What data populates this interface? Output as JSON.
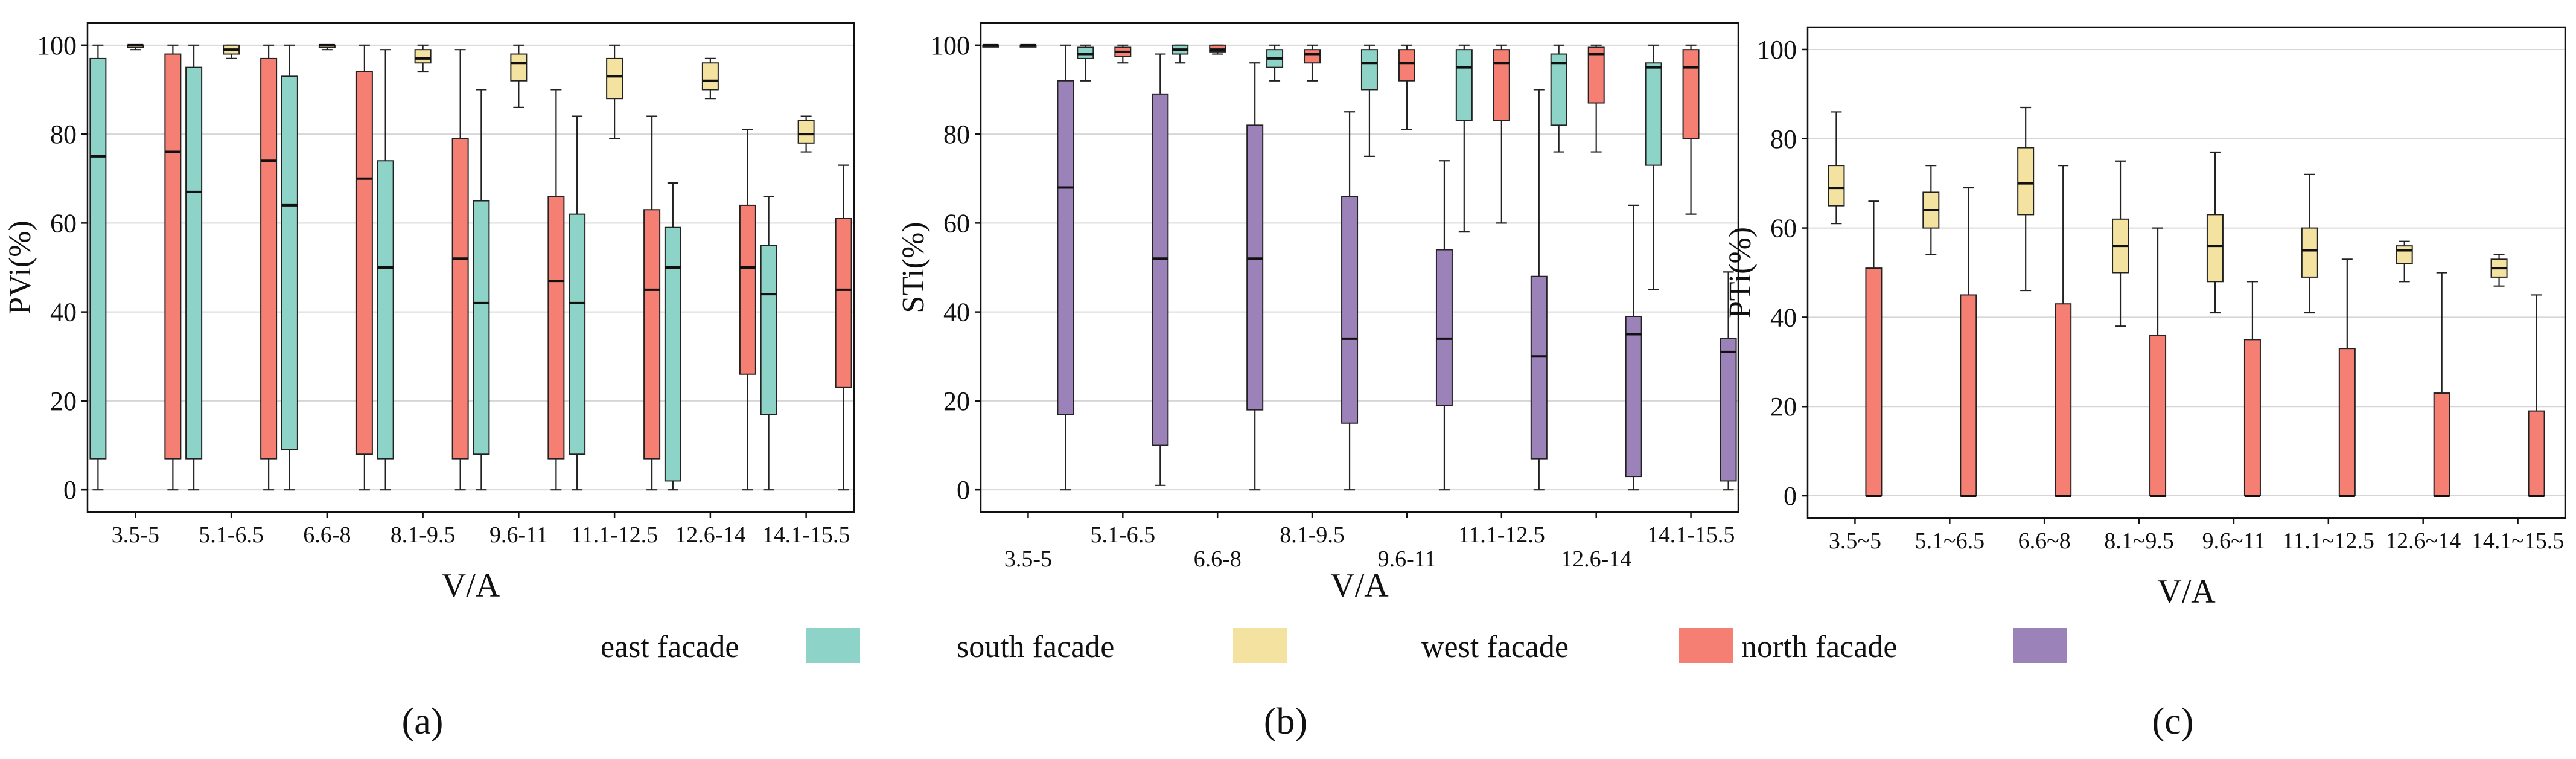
{
  "figure": {
    "colors": {
      "east": "#8dd3c7",
      "south": "#f4e2a0",
      "west": "#f47f72",
      "north": "#9b82b8",
      "grid": "#d6d6d6",
      "axis": "#111111"
    },
    "legend": [
      {
        "key": "east",
        "label": "east facade"
      },
      {
        "key": "south",
        "label": "south facade"
      },
      {
        "key": "west",
        "label": "west facade"
      },
      {
        "key": "north",
        "label": "north facade"
      }
    ]
  },
  "chart_data": [
    {
      "panel_label": "(a)",
      "type": "box",
      "title": "",
      "xlabel": "V/A",
      "ylabel": "PVi(%)",
      "ylim": [
        -5,
        105
      ],
      "yticks": [
        0,
        20,
        40,
        60,
        80,
        100
      ],
      "grid": true,
      "categories": [
        "3.5-5",
        "5.1-6.5",
        "6.6-8",
        "8.1-9.5",
        "9.6-11",
        "11.1-12.5",
        "12.6-14",
        "14.1-15.5"
      ],
      "series": [
        {
          "name": "east facade",
          "key": "east",
          "boxes": [
            {
              "whislo": 0,
              "q1": 7,
              "med": 75,
              "q3": 97,
              "whishi": 100
            },
            {
              "whislo": 0,
              "q1": 7,
              "med": 67,
              "q3": 95,
              "whishi": 100
            },
            {
              "whislo": 0,
              "q1": 9,
              "med": 64,
              "q3": 93,
              "whishi": 100
            },
            {
              "whislo": 0,
              "q1": 7,
              "med": 50,
              "q3": 74,
              "whishi": 99
            },
            {
              "whislo": 0,
              "q1": 8,
              "med": 42,
              "q3": 65,
              "whishi": 90
            },
            {
              "whislo": 0,
              "q1": 8,
              "med": 42,
              "q3": 62,
              "whishi": 84
            },
            {
              "whislo": 0,
              "q1": 2,
              "med": 50,
              "q3": 59,
              "whishi": 69
            },
            {
              "whislo": 0,
              "q1": 17,
              "med": 44,
              "q3": 55,
              "whishi": 66
            }
          ]
        },
        {
          "name": "south facade",
          "key": "south",
          "boxes": [
            {
              "whislo": 99,
              "q1": 99.5,
              "med": 100,
              "q3": 100,
              "whishi": 100
            },
            {
              "whislo": 97,
              "q1": 98,
              "med": 99,
              "q3": 100,
              "whishi": 100
            },
            {
              "whislo": 99,
              "q1": 99.5,
              "med": 100,
              "q3": 100,
              "whishi": 100
            },
            {
              "whislo": 94,
              "q1": 96,
              "med": 97,
              "q3": 99,
              "whishi": 100
            },
            {
              "whislo": 86,
              "q1": 92,
              "med": 96,
              "q3": 98,
              "whishi": 100
            },
            {
              "whislo": 79,
              "q1": 88,
              "med": 93,
              "q3": 97,
              "whishi": 100
            },
            {
              "whislo": 88,
              "q1": 90,
              "med": 92,
              "q3": 96,
              "whishi": 97
            },
            {
              "whislo": 76,
              "q1": 78,
              "med": 80,
              "q3": 83,
              "whishi": 84
            }
          ]
        },
        {
          "name": "west facade",
          "key": "west",
          "boxes": [
            {
              "whislo": 0,
              "q1": 7,
              "med": 76,
              "q3": 98,
              "whishi": 100
            },
            {
              "whislo": 0,
              "q1": 7,
              "med": 74,
              "q3": 97,
              "whishi": 100
            },
            {
              "whislo": 0,
              "q1": 8,
              "med": 70,
              "q3": 94,
              "whishi": 100
            },
            {
              "whislo": 0,
              "q1": 7,
              "med": 52,
              "q3": 79,
              "whishi": 99
            },
            {
              "whislo": 0,
              "q1": 7,
              "med": 47,
              "q3": 66,
              "whishi": 90
            },
            {
              "whislo": 0,
              "q1": 7,
              "med": 45,
              "q3": 63,
              "whishi": 84
            },
            {
              "whislo": 0,
              "q1": 26,
              "med": 50,
              "q3": 64,
              "whishi": 81
            },
            {
              "whislo": 0,
              "q1": 23,
              "med": 45,
              "q3": 61,
              "whishi": 73
            }
          ]
        }
      ]
    },
    {
      "panel_label": "(b)",
      "type": "box",
      "title": "",
      "xlabel": "V/A",
      "ylabel": "STi(%)",
      "ylim": [
        -5,
        105
      ],
      "yticks": [
        0,
        20,
        40,
        60,
        80,
        100
      ],
      "grid": true,
      "categories": [
        "3.5-5",
        "5.1-6.5",
        "6.6-8",
        "8.1-9.5",
        "9.6-11",
        "11.1-12.5",
        "12.6-14",
        "14.1-15.5"
      ],
      "series": [
        {
          "name": "east facade",
          "key": "east",
          "boxes": [
            {
              "whislo": 100,
              "q1": 100,
              "med": 100,
              "q3": 100,
              "whishi": 100
            },
            {
              "whislo": 92,
              "q1": 97,
              "med": 98,
              "q3": 99.5,
              "whishi": 100
            },
            {
              "whislo": 96,
              "q1": 98,
              "med": 99,
              "q3": 100,
              "whishi": 100
            },
            {
              "whislo": 92,
              "q1": 95,
              "med": 97,
              "q3": 99,
              "whishi": 100
            },
            {
              "whislo": 75,
              "q1": 90,
              "med": 96,
              "q3": 99,
              "whishi": 100
            },
            {
              "whislo": 58,
              "q1": 83,
              "med": 95,
              "q3": 99,
              "whishi": 100
            },
            {
              "whislo": 76,
              "q1": 82,
              "med": 96,
              "q3": 98,
              "whishi": 100
            },
            {
              "whislo": 45,
              "q1": 73,
              "med": 95,
              "q3": 96,
              "whishi": 100
            }
          ]
        },
        {
          "name": "west facade",
          "key": "west",
          "boxes": [
            {
              "whislo": 100,
              "q1": 100,
              "med": 100,
              "q3": 100,
              "whishi": 100
            },
            {
              "whislo": 96,
              "q1": 97.5,
              "med": 98.5,
              "q3": 99.5,
              "whishi": 100
            },
            {
              "whislo": 98,
              "q1": 98.5,
              "med": 99,
              "q3": 100,
              "whishi": 100
            },
            {
              "whislo": 92,
              "q1": 96,
              "med": 98,
              "q3": 99,
              "whishi": 100
            },
            {
              "whislo": 81,
              "q1": 92,
              "med": 96,
              "q3": 99,
              "whishi": 100
            },
            {
              "whislo": 60,
              "q1": 83,
              "med": 96,
              "q3": 99,
              "whishi": 100
            },
            {
              "whislo": 76,
              "q1": 87,
              "med": 98,
              "q3": 99.5,
              "whishi": 100
            },
            {
              "whislo": 62,
              "q1": 79,
              "med": 95,
              "q3": 99,
              "whishi": 100
            }
          ]
        },
        {
          "name": "north facade",
          "key": "north",
          "boxes": [
            {
              "whislo": 0,
              "q1": 17,
              "med": 68,
              "q3": 92,
              "whishi": 100
            },
            {
              "whislo": 1,
              "q1": 10,
              "med": 52,
              "q3": 89,
              "whishi": 98
            },
            {
              "whislo": 0,
              "q1": 18,
              "med": 52,
              "q3": 82,
              "whishi": 96
            },
            {
              "whislo": 0,
              "q1": 15,
              "med": 34,
              "q3": 66,
              "whishi": 85
            },
            {
              "whislo": 0,
              "q1": 19,
              "med": 34,
              "q3": 54,
              "whishi": 74
            },
            {
              "whislo": 0,
              "q1": 7,
              "med": 30,
              "q3": 48,
              "whishi": 90
            },
            {
              "whislo": 0,
              "q1": 3,
              "med": 35,
              "q3": 39,
              "whishi": 64
            },
            {
              "whislo": 0,
              "q1": 2,
              "med": 31,
              "q3": 34,
              "whishi": 49
            }
          ]
        }
      ]
    },
    {
      "panel_label": "(c)",
      "type": "box",
      "title": "",
      "xlabel": "V/A",
      "ylabel": "PTi(%)",
      "ylim": [
        -5,
        105
      ],
      "yticks": [
        0,
        20,
        40,
        60,
        80,
        100
      ],
      "grid": true,
      "categories": [
        "3.5~5",
        "5.1~6.5",
        "6.6~8",
        "8.1~9.5",
        "9.6~11",
        "11.1~12.5",
        "12.6~14",
        "14.1~15.5"
      ],
      "series": [
        {
          "name": "south facade",
          "key": "south",
          "boxes": [
            {
              "whislo": 61,
              "q1": 65,
              "med": 69,
              "q3": 74,
              "whishi": 86
            },
            {
              "whislo": 54,
              "q1": 60,
              "med": 64,
              "q3": 68,
              "whishi": 74
            },
            {
              "whislo": 46,
              "q1": 63,
              "med": 70,
              "q3": 78,
              "whishi": 87
            },
            {
              "whislo": 38,
              "q1": 50,
              "med": 56,
              "q3": 62,
              "whishi": 75
            },
            {
              "whislo": 41,
              "q1": 48,
              "med": 56,
              "q3": 63,
              "whishi": 77
            },
            {
              "whislo": 41,
              "q1": 49,
              "med": 55,
              "q3": 60,
              "whishi": 72
            },
            {
              "whislo": 48,
              "q1": 52,
              "med": 55,
              "q3": 56,
              "whishi": 57
            },
            {
              "whislo": 47,
              "q1": 49,
              "med": 51,
              "q3": 53,
              "whishi": 54
            }
          ]
        },
        {
          "name": "west facade",
          "key": "west",
          "boxes": [
            {
              "whislo": 0,
              "q1": 0,
              "med": 0,
              "q3": 51,
              "whishi": 66
            },
            {
              "whislo": 0,
              "q1": 0,
              "med": 0,
              "q3": 45,
              "whishi": 69
            },
            {
              "whislo": 0,
              "q1": 0,
              "med": 0,
              "q3": 43,
              "whishi": 74
            },
            {
              "whislo": 0,
              "q1": 0,
              "med": 0,
              "q3": 36,
              "whishi": 60
            },
            {
              "whislo": 0,
              "q1": 0,
              "med": 0,
              "q3": 35,
              "whishi": 48
            },
            {
              "whislo": 0,
              "q1": 0,
              "med": 0,
              "q3": 33,
              "whishi": 53
            },
            {
              "whislo": 0,
              "q1": 0,
              "med": 0,
              "q3": 23,
              "whishi": 50
            },
            {
              "whislo": 0,
              "q1": 0,
              "med": 0,
              "q3": 19,
              "whishi": 45
            }
          ]
        }
      ]
    }
  ]
}
